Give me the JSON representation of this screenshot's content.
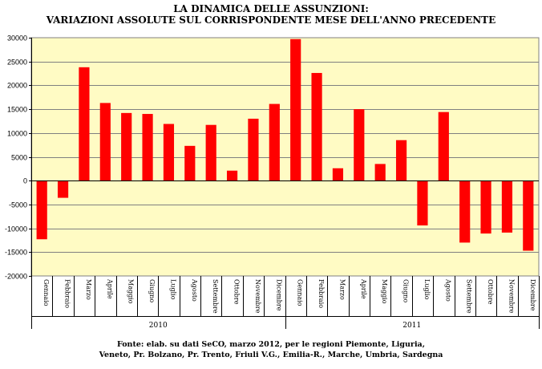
{
  "chart_data": {
    "type": "bar",
    "title_lines": [
      "LA DINAMICA DELLE ASSUNZIONI:",
      "VARIAZIONI ASSOLUTE SUL CORRISPONDENTE MESE DELL'ANNO PRECEDENTE"
    ],
    "months": [
      "Gennaio",
      "Febbraio",
      "Marzo",
      "Aprile",
      "Maggio",
      "Giugno",
      "Luglio",
      "Agosto",
      "Settembre",
      "Ottobre",
      "Novembre",
      "Dicembre",
      "Gennaio",
      "Febbraio",
      "Marzo",
      "Aprile",
      "Maggio",
      "Giugno",
      "Luglio",
      "Agosto",
      "Settembre",
      "Ottobre",
      "Novembre",
      "Dicembre"
    ],
    "years": [
      {
        "label": "2010",
        "count": 12
      },
      {
        "label": "2011",
        "count": 12
      }
    ],
    "values": [
      -12300,
      -3600,
      23800,
      16300,
      14200,
      14000,
      11900,
      7300,
      11700,
      2100,
      13000,
      16100,
      29700,
      22600,
      2600,
      15000,
      3500,
      8500,
      -9400,
      14400,
      -13000,
      -11100,
      -10900,
      -14700
    ],
    "yticks": [
      30000,
      25000,
      20000,
      15000,
      10000,
      5000,
      0,
      -5000,
      -10000,
      -15000,
      -20000
    ],
    "ylim": [
      -20000,
      30000
    ],
    "grid": true,
    "bar_color": "#ff0000",
    "plot_background": "#fffbc4",
    "source_lines": [
      "Fonte: elab. su dati SeCO, marzo 2012, per le regioni Piemonte, Liguria,",
      "Veneto, Pr. Bolzano, Pr. Trento, Friuli V.G., Emilia-R., Marche, Umbria, Sardegna"
    ]
  }
}
